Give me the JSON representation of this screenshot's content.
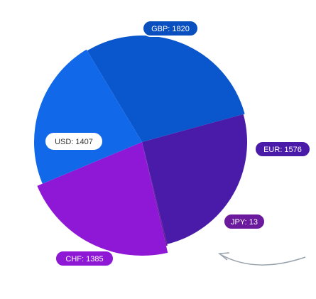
{
  "chart_data": {
    "type": "pie",
    "series": [
      {
        "label": "GBP",
        "value": 1820,
        "text": "GBP: 1820",
        "color": "#0a56cc",
        "label_color": "#0a4fbf",
        "label_text_color": "#ffffff"
      },
      {
        "label": "EUR",
        "value": 1576,
        "text": "EUR: 1576",
        "color": "#4a1aa8",
        "label_color": "#4a1aa8",
        "label_text_color": "#ffffff"
      },
      {
        "label": "JPY",
        "value": 13,
        "text": "JPY: 13",
        "color": "#6b1a9e",
        "label_color": "#6b1a9e",
        "label_text_color": "#ffffff"
      },
      {
        "label": "CHF",
        "value": 1385,
        "text": "CHF: 1385",
        "color": "#8f18d6",
        "label_color": "#8f18d6",
        "label_text_color": "#ffffff"
      },
      {
        "label": "USD",
        "value": 1407,
        "text": "USD: 1407",
        "color": "#1169ea",
        "label_color": "#ffffff",
        "label_text_color": "#333333"
      }
    ]
  }
}
